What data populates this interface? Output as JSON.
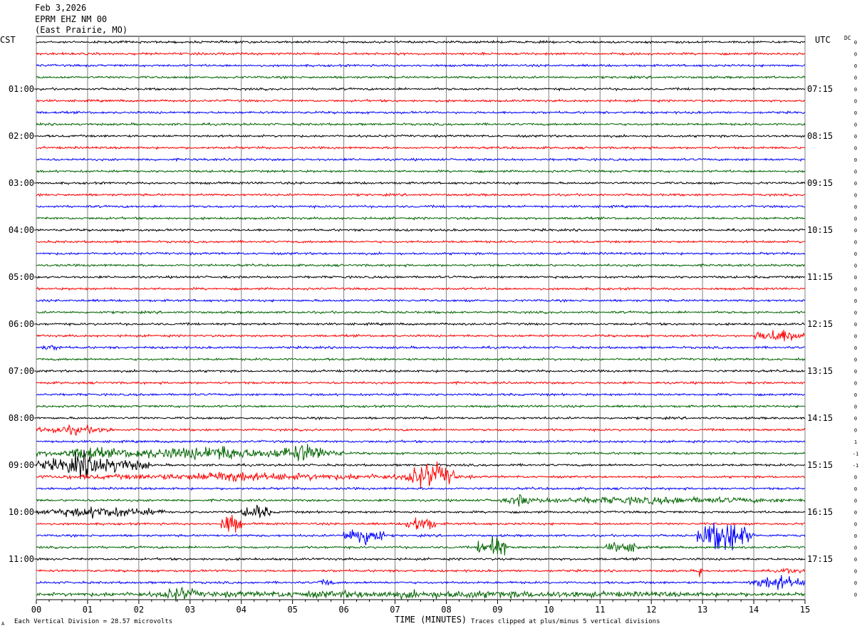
{
  "header": {
    "date": "Feb 3,2026",
    "station": "EPRM EHZ NM 00",
    "location": "(East Prairie, MO)"
  },
  "labels": {
    "left_zone": "CST",
    "right_zone": "UTC",
    "dc": "DC",
    "xlabel": "TIME (MINUTES)",
    "scale_note": "Each Vertical Division =   28.57 microvolts",
    "clip_note": "Traces clipped at plus/minus 5 vertical divisions",
    "corner_mark": "A"
  },
  "colors": {
    "trace_cycle": [
      "#000000",
      "#ff0000",
      "#0000ff",
      "#006400"
    ],
    "grid": "#808080"
  },
  "chart_data": {
    "type": "helicorder",
    "x_range": [
      0,
      15
    ],
    "x_ticks": [
      "00",
      "01",
      "02",
      "03",
      "04",
      "05",
      "06",
      "07",
      "08",
      "09",
      "10",
      "11",
      "12",
      "13",
      "14",
      "15"
    ],
    "rows": 48,
    "row_minutes": 15,
    "cst_labels": [
      "01:00",
      "02:00",
      "03:00",
      "04:00",
      "05:00",
      "06:00",
      "07:00",
      "08:00",
      "09:00",
      "10:00",
      "11:00"
    ],
    "utc_labels": [
      "07:15",
      "08:15",
      "09:15",
      "10:15",
      "11:15",
      "12:15",
      "13:15",
      "14:15",
      "15:15",
      "16:15",
      "17:15"
    ],
    "dc_offsets": [
      "0",
      "0",
      "0",
      "0",
      "0",
      "0",
      "0",
      "0",
      "0",
      "0",
      "0",
      "0",
      "0",
      "0",
      "0",
      "0",
      "0",
      "0",
      "0",
      "0",
      "0",
      "0",
      "0",
      "0",
      "0",
      "0",
      "0",
      "0",
      "0",
      "0",
      "0",
      "0",
      "0",
      "0",
      "1",
      "-1",
      "-1",
      "0",
      "0",
      "0",
      "0",
      "0",
      "0",
      "0",
      "0",
      "0",
      "0",
      "0"
    ],
    "events": [
      {
        "row": 25,
        "start_min": 14.0,
        "end_min": 15.0,
        "amp": 8
      },
      {
        "row": 26,
        "start_min": 0.0,
        "end_min": 0.6,
        "amp": 3
      },
      {
        "row": 33,
        "start_min": 0.0,
        "end_min": 1.5,
        "amp": 5
      },
      {
        "row": 35,
        "start_min": 0.0,
        "end_min": 6.0,
        "amp": 6
      },
      {
        "row": 35,
        "start_min": 0.5,
        "end_min": 1.5,
        "amp": 8
      },
      {
        "row": 35,
        "start_min": 2.8,
        "end_min": 4.3,
        "amp": 9
      },
      {
        "row": 35,
        "start_min": 4.6,
        "end_min": 5.8,
        "amp": 10
      },
      {
        "row": 36,
        "start_min": 0.0,
        "end_min": 2.2,
        "amp": 10
      },
      {
        "row": 36,
        "start_min": 0.5,
        "end_min": 1.3,
        "amp": 14
      },
      {
        "row": 37,
        "start_min": 0.0,
        "end_min": 8.5,
        "amp": 4
      },
      {
        "row": 37,
        "start_min": 3.0,
        "end_min": 4.5,
        "amp": 7
      },
      {
        "row": 37,
        "start_min": 7.2,
        "end_min": 8.2,
        "amp": 15
      },
      {
        "row": 39,
        "start_min": 8.8,
        "end_min": 15.0,
        "amp": 4
      },
      {
        "row": 39,
        "start_min": 9.2,
        "end_min": 9.7,
        "amp": 7
      },
      {
        "row": 40,
        "start_min": 0.0,
        "end_min": 2.5,
        "amp": 6
      },
      {
        "row": 40,
        "start_min": 4.0,
        "end_min": 4.6,
        "amp": 8
      },
      {
        "row": 41,
        "start_min": 3.6,
        "end_min": 4.0,
        "amp": 13
      },
      {
        "row": 41,
        "start_min": 7.2,
        "end_min": 7.8,
        "amp": 9
      },
      {
        "row": 42,
        "start_min": 6.0,
        "end_min": 6.8,
        "amp": 12
      },
      {
        "row": 42,
        "start_min": 12.9,
        "end_min": 14.0,
        "amp": 18
      },
      {
        "row": 43,
        "start_min": 8.6,
        "end_min": 9.2,
        "amp": 14
      },
      {
        "row": 43,
        "start_min": 11.1,
        "end_min": 11.8,
        "amp": 7
      },
      {
        "row": 45,
        "start_min": 12.9,
        "end_min": 13.0,
        "amp": 10
      },
      {
        "row": 45,
        "start_min": 14.4,
        "end_min": 15.0,
        "amp": 3
      },
      {
        "row": 46,
        "start_min": 13.9,
        "end_min": 15.0,
        "amp": 8
      },
      {
        "row": 46,
        "start_min": 5.5,
        "end_min": 5.8,
        "amp": 5
      },
      {
        "row": 47,
        "start_min": 0.0,
        "end_min": 15.0,
        "amp": 4
      },
      {
        "row": 47,
        "start_min": 2.4,
        "end_min": 3.2,
        "amp": 8
      }
    ]
  }
}
